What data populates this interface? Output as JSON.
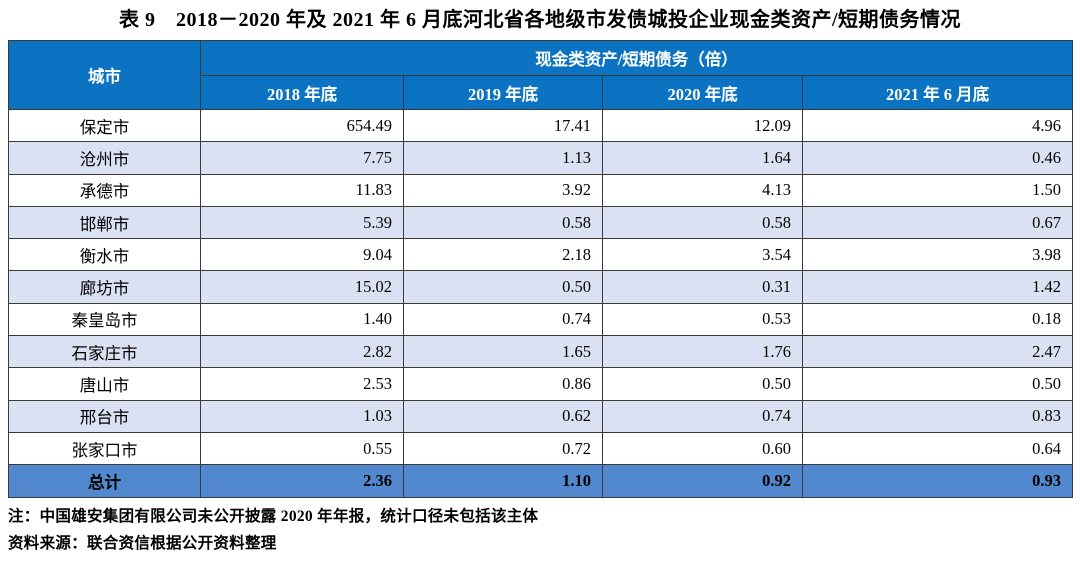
{
  "page": {
    "title": "表 9　2018－2020 年及 2021 年 6 月底河北省各地级市发债城投企业现金类资产/短期债务情况"
  },
  "colors": {
    "header_bg": "#0C73C2",
    "stripe_bg": "#D9E1F3",
    "total_bg": "#5289CE",
    "border": "#3a3a3a"
  },
  "table": {
    "corner_header": "城市",
    "group_header": "现金类资产/短期债务（倍）",
    "column_headers": [
      "2018 年底",
      "2019 年底",
      "2020 年底",
      "2021 年 6 月底"
    ],
    "rows": [
      {
        "city": "保定市",
        "values": [
          "654.49",
          "17.41",
          "12.09",
          "4.96"
        ]
      },
      {
        "city": "沧州市",
        "values": [
          "7.75",
          "1.13",
          "1.64",
          "0.46"
        ]
      },
      {
        "city": "承德市",
        "values": [
          "11.83",
          "3.92",
          "4.13",
          "1.50"
        ]
      },
      {
        "city": "邯郸市",
        "values": [
          "5.39",
          "0.58",
          "0.58",
          "0.67"
        ]
      },
      {
        "city": "衡水市",
        "values": [
          "9.04",
          "2.18",
          "3.54",
          "3.98"
        ]
      },
      {
        "city": "廊坊市",
        "values": [
          "15.02",
          "0.50",
          "0.31",
          "1.42"
        ]
      },
      {
        "city": "秦皇岛市",
        "values": [
          "1.40",
          "0.74",
          "0.53",
          "0.18"
        ]
      },
      {
        "city": "石家庄市",
        "values": [
          "2.82",
          "1.65",
          "1.76",
          "2.47"
        ]
      },
      {
        "city": "唐山市",
        "values": [
          "2.53",
          "0.86",
          "0.50",
          "0.50"
        ]
      },
      {
        "city": "邢台市",
        "values": [
          "1.03",
          "0.62",
          "0.74",
          "0.83"
        ]
      },
      {
        "city": "张家口市",
        "values": [
          "0.55",
          "0.72",
          "0.60",
          "0.64"
        ]
      }
    ],
    "total_row": {
      "label": "总计",
      "values": [
        "2.36",
        "1.10",
        "0.92",
        "0.93"
      ]
    }
  },
  "notes": {
    "note": "注：中国雄安集团有限公司未公开披露 2020 年年报，统计口径未包括该主体",
    "source": "资料来源：联合资信根据公开资料整理"
  }
}
